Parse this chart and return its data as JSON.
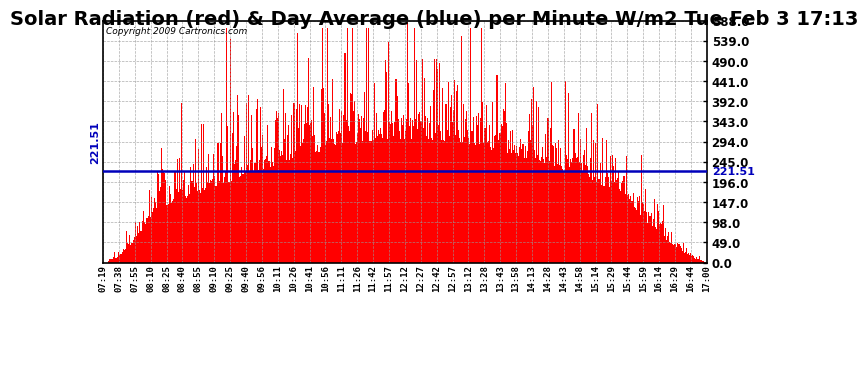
{
  "title": "Solar Radiation (red) & Day Average (blue) per Minute W/m2 Tue Feb 3 17:13",
  "copyright": "Copyright 2009 Cartronics.com",
  "avg_value": 221.51,
  "y_min": 0.0,
  "y_max": 588.0,
  "y_ticks": [
    0.0,
    49.0,
    98.0,
    147.0,
    196.0,
    245.0,
    294.0,
    343.0,
    392.0,
    441.0,
    490.0,
    539.0,
    588.0
  ],
  "bar_color": "#FF0000",
  "avg_line_color": "#0000BB",
  "background_color": "#FFFFFF",
  "plot_bg_color": "#FFFFFF",
  "grid_color": "#999999",
  "x_tick_labels": [
    "07:19",
    "07:38",
    "07:55",
    "08:10",
    "08:25",
    "08:40",
    "08:55",
    "09:10",
    "09:25",
    "09:40",
    "09:56",
    "10:11",
    "10:26",
    "10:41",
    "10:56",
    "11:11",
    "11:26",
    "11:42",
    "11:57",
    "12:12",
    "12:27",
    "12:42",
    "12:57",
    "13:12",
    "13:28",
    "13:43",
    "13:58",
    "14:13",
    "14:28",
    "14:43",
    "14:58",
    "15:14",
    "15:29",
    "15:44",
    "15:59",
    "16:14",
    "16:29",
    "16:44",
    "17:00"
  ],
  "title_fontsize": 14,
  "tick_fontsize": 8.5
}
